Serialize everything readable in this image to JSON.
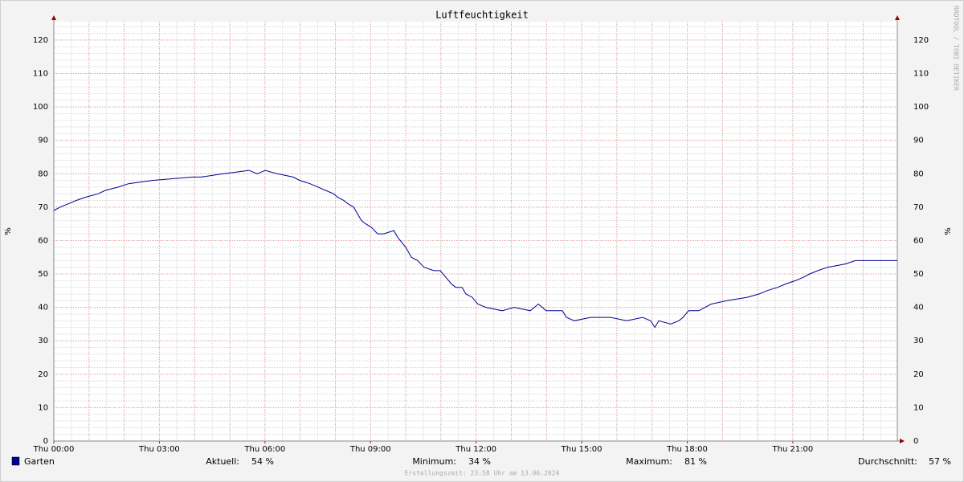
{
  "chart_data": {
    "type": "line",
    "title": "Luftfeuchtigkeit",
    "ylabel": "%",
    "y2label": "%",
    "watermark": "RRDTOOL / TOBI OETIKER",
    "series": [
      {
        "name": "Garten",
        "color": "#000090",
        "x": [
          0,
          0.18,
          0.41,
          0.64,
          0.91,
          1.26,
          1.46,
          1.83,
          2.12,
          2.79,
          3.95,
          4.18,
          4.82,
          5.55,
          5.78,
          6.01,
          6.35,
          6.8,
          6.99,
          7.28,
          7.51,
          7.72,
          7.95,
          8.06,
          8.24,
          8.36,
          8.52,
          8.63,
          8.74,
          8.86,
          9.02,
          9.2,
          9.38,
          9.66,
          9.77,
          10,
          10.16,
          10.34,
          10.52,
          10.8,
          10.98,
          11.14,
          11.3,
          11.42,
          11.6,
          11.71,
          11.89,
          12.05,
          12.28,
          12.74,
          13.08,
          13.54,
          13.77,
          13.99,
          14.45,
          14.57,
          14.79,
          15.25,
          15.82,
          16.28,
          16.73,
          16.96,
          17.08,
          17.19,
          17.53,
          17.76,
          17.88,
          18.04,
          18.33,
          18.68,
          19.13,
          19.7,
          20.04,
          20.27,
          20.57,
          20.8,
          21.07,
          21.3,
          21.48,
          21.71,
          21.99,
          22.49,
          22.78,
          23.97
        ],
        "values": [
          69,
          70,
          71,
          72,
          73,
          74,
          75,
          76,
          77,
          78,
          79,
          79,
          80,
          81,
          80,
          81,
          80,
          79,
          78,
          77,
          76,
          75,
          74,
          73,
          72,
          71,
          70,
          68,
          66,
          65,
          64,
          62,
          62,
          63,
          61,
          58,
          55,
          54,
          52,
          51,
          51,
          49,
          47,
          46,
          46,
          44,
          43,
          41,
          40,
          39,
          40,
          39,
          41,
          39,
          39,
          37,
          36,
          37,
          37,
          36,
          37,
          36,
          34,
          36,
          35,
          36,
          37,
          39,
          39,
          41,
          42,
          43,
          44,
          45,
          46,
          47,
          48,
          49,
          50,
          51,
          52,
          53,
          54,
          54
        ]
      }
    ],
    "xlim": [
      0,
      23.97
    ],
    "xticks": [
      {
        "value": 0,
        "label": "Thu 00:00"
      },
      {
        "value": 3,
        "label": "Thu 03:00"
      },
      {
        "value": 6,
        "label": "Thu 06:00"
      },
      {
        "value": 9,
        "label": "Thu 09:00"
      },
      {
        "value": 12,
        "label": "Thu 12:00"
      },
      {
        "value": 15,
        "label": "Thu 15:00"
      },
      {
        "value": 18,
        "label": "Thu 18:00"
      },
      {
        "value": 21,
        "label": "Thu 21:00"
      }
    ],
    "ylim": [
      0,
      125.5
    ],
    "yticks": [
      0,
      10,
      20,
      30,
      40,
      50,
      60,
      70,
      80,
      90,
      100,
      110,
      120
    ],
    "y2lim": [
      0,
      125.5
    ],
    "y2ticks": [
      0,
      10,
      20,
      30,
      40,
      50,
      60,
      70,
      80,
      90,
      100,
      110,
      120
    ],
    "grid": true,
    "x_major_grid_step": 1,
    "x_minor_grid_step": 0.5,
    "y_minor_grid_step": 2,
    "stats": [
      {
        "label": "Aktuell:",
        "value": "54 %"
      },
      {
        "label": "Minimum:",
        "value": "34 %"
      },
      {
        "label": "Maximum:",
        "value": "81 %"
      },
      {
        "label": "Durchschnitt:",
        "value": "57 %"
      }
    ],
    "footer": "Erstellungszeit: 23:58 Uhr am 13.06.2024"
  }
}
